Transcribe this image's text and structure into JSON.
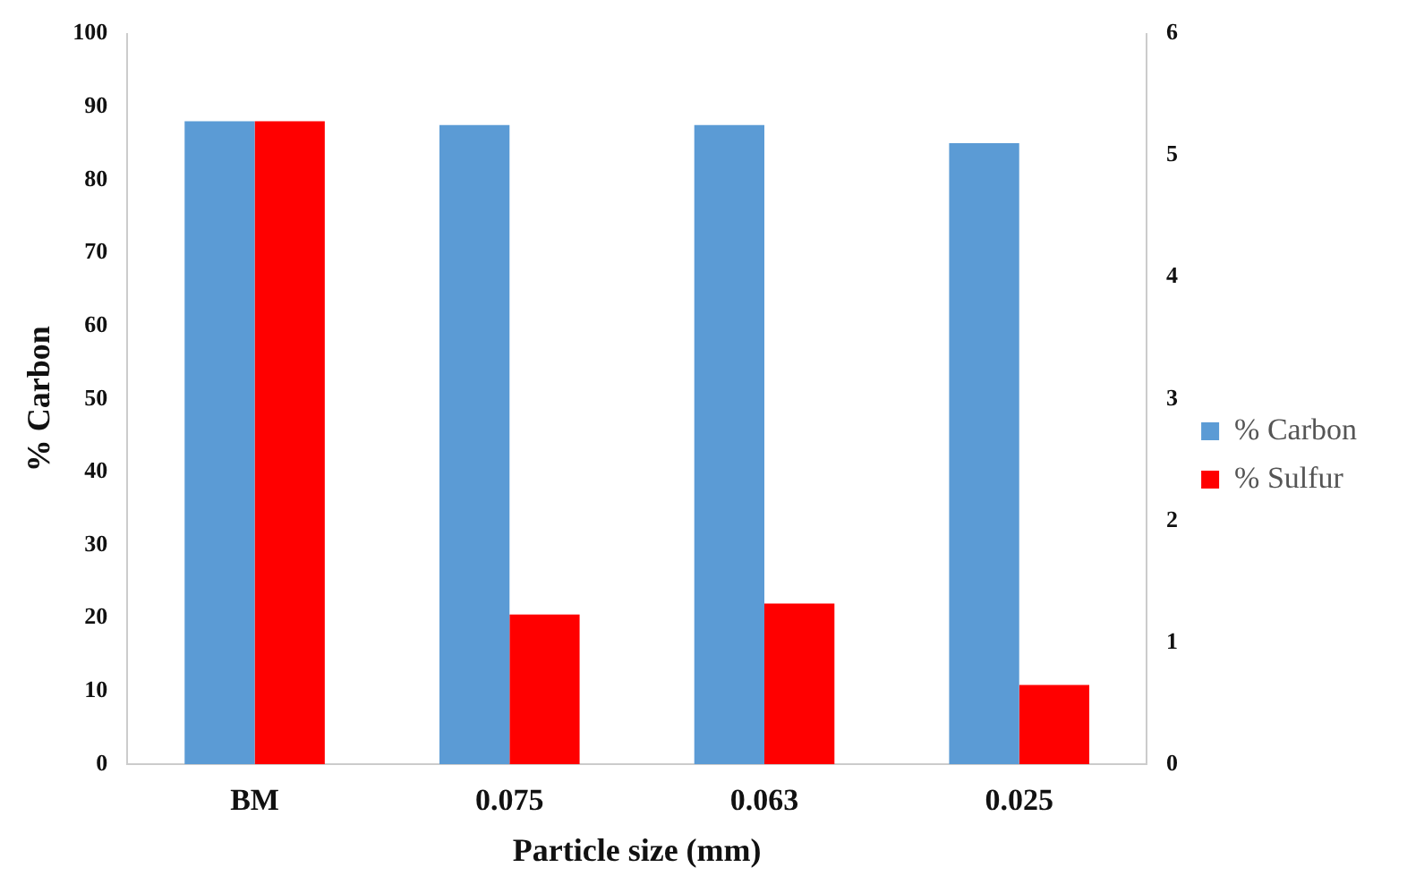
{
  "chart_data": {
    "type": "bar",
    "xlabel": "Particle size (mm)",
    "ylabel": "% Carbon",
    "categories": [
      "BM",
      "0.075",
      "0.063",
      "0.025"
    ],
    "series": [
      {
        "name": "% Carbon",
        "color": "#5b9bd5",
        "values": [
          88,
          87.5,
          87.5,
          85
        ]
      },
      {
        "name": "% Sulfur",
        "color": "#ff0000",
        "values": [
          5.28,
          1.23,
          1.32,
          0.65
        ],
        "axis": "y2"
      }
    ],
    "ylim": [
      0,
      100
    ],
    "yticks": [
      0,
      10,
      20,
      30,
      40,
      50,
      60,
      70,
      80,
      90,
      100
    ],
    "y2lim": [
      0,
      6
    ],
    "y2ticks": [
      0,
      1,
      2,
      3,
      4,
      5,
      6
    ],
    "grid": false,
    "legend": "right"
  }
}
